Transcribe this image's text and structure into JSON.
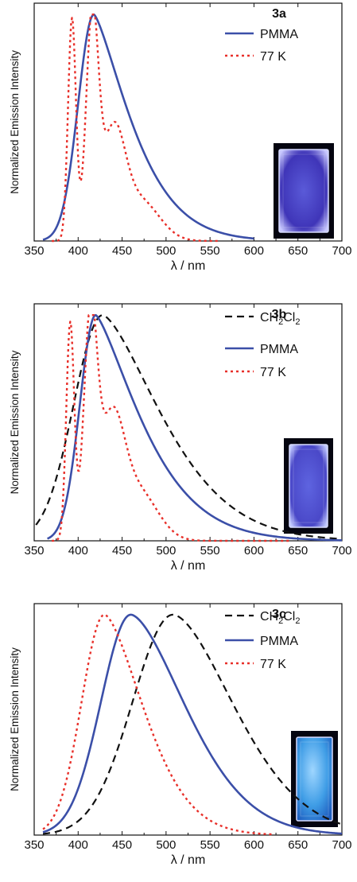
{
  "chart_data": [
    {
      "type": "line",
      "title": "3a",
      "xlabel": "λ / nm",
      "ylabel": "Normalized Emission Intensity",
      "xlim": [
        350,
        700
      ],
      "ylim": [
        0,
        1.05
      ],
      "xticks": [
        "350",
        "400",
        "450",
        "500",
        "550",
        "600",
        "650",
        "700"
      ],
      "series": [
        {
          "name": "PMMA",
          "color": "#3b4fa8",
          "dash": "solid",
          "fn": {
            "mode": "skew",
            "peak": 418,
            "w1": 18,
            "w2": 42,
            "p2": 1.35,
            "start": 360,
            "end": 600
          }
        },
        {
          "name": "77 K",
          "color": "#e8302a",
          "dash": "dotted",
          "fn": {
            "mode": "vibronic",
            "peaks": [
              [
                393,
                0.98,
                4.5
              ],
              [
                416,
                0.96,
                7
              ],
              [
                440,
                0.45,
                13
              ],
              [
                470,
                0.18,
                22
              ]
            ],
            "start": 370,
            "end": 560
          }
        }
      ],
      "inset_photo": "blue-emitting film photo"
    },
    {
      "type": "line",
      "title": "3b",
      "xlabel": "λ / nm",
      "ylabel": "Normalized Emission Intensity",
      "xlim": [
        350,
        700
      ],
      "ylim": [
        0,
        1.05
      ],
      "xticks": [
        "350",
        "400",
        "450",
        "500",
        "550",
        "600",
        "650",
        "700"
      ],
      "series": [
        {
          "name": "CH2Cl2",
          "color": "#111111",
          "dash": "dashed",
          "fn": {
            "mode": "skew",
            "peak": 428,
            "w1": 33,
            "w2": 70,
            "p2": 1.5,
            "start": 352,
            "end": 700
          }
        },
        {
          "name": "PMMA",
          "color": "#3b4fa8",
          "dash": "solid",
          "fn": {
            "mode": "skew",
            "peak": 420,
            "w1": 18,
            "w2": 52,
            "p2": 1.35,
            "start": 365,
            "end": 700
          }
        },
        {
          "name": "77 K",
          "color": "#e8302a",
          "dash": "dotted",
          "fn": {
            "mode": "vibronic",
            "peaks": [
              [
                391,
                0.96,
                4.5
              ],
              [
                414,
                0.95,
                7.5
              ],
              [
                438,
                0.5,
                14
              ],
              [
                468,
                0.22,
                22
              ]
            ],
            "start": 370,
            "end": 640
          }
        }
      ],
      "inset_photo": "blue-emitting film photo"
    },
    {
      "type": "line",
      "title": "3c",
      "xlabel": "λ / nm",
      "ylabel": "Normalized Emission Intensity",
      "xlim": [
        350,
        700
      ],
      "ylim": [
        0,
        1.05
      ],
      "xticks": [
        "350",
        "400",
        "450",
        "500",
        "550",
        "600",
        "650",
        "700"
      ],
      "series": [
        {
          "name": "CH2Cl2",
          "color": "#111111",
          "dash": "dashed",
          "fn": {
            "mode": "skew",
            "peak": 508,
            "w1": 46,
            "w2": 76,
            "p2": 1.7,
            "start": 360,
            "end": 700
          }
        },
        {
          "name": "PMMA",
          "color": "#3b4fa8",
          "dash": "solid",
          "fn": {
            "mode": "skew",
            "peak": 460,
            "w1": 34,
            "w2": 68,
            "p2": 1.65,
            "start": 360,
            "end": 700
          }
        },
        {
          "name": "77 K",
          "color": "#e8302a",
          "dash": "dotted",
          "fn": {
            "mode": "skew",
            "peak": 430,
            "w1": 26,
            "w2": 48,
            "p2": 1.6,
            "start": 360,
            "end": 620
          }
        }
      ],
      "inset_photo": "cyan-blue-emitting film photo"
    }
  ]
}
